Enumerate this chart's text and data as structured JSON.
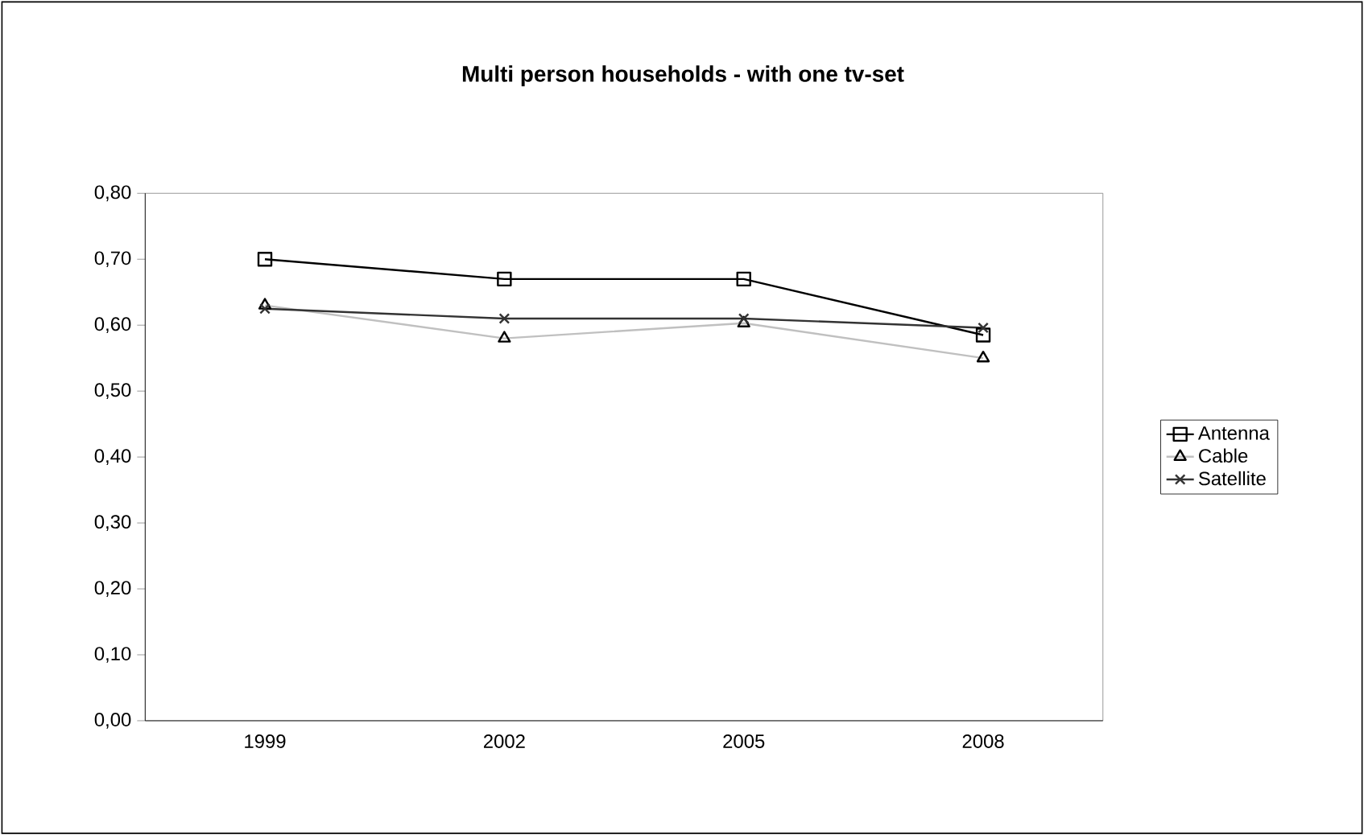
{
  "chart_data": {
    "type": "line",
    "title": "Multi person households - with one tv-set",
    "categories": [
      "1999",
      "2002",
      "2005",
      "2008"
    ],
    "series": [
      {
        "name": "Antenna",
        "color": "#000000",
        "marker": "square",
        "values": [
          0.7,
          0.67,
          0.67,
          0.585
        ]
      },
      {
        "name": "Cable",
        "color": "#c0c0c0",
        "marker": "triangle",
        "values": [
          0.63,
          0.58,
          0.603,
          0.55
        ]
      },
      {
        "name": "Satellite",
        "color": "#333333",
        "marker": "cross",
        "values": [
          0.625,
          0.61,
          0.61,
          0.596
        ]
      }
    ],
    "ylim": [
      0,
      0.8
    ],
    "yticks": [
      {
        "value": 0,
        "label": "0,00"
      },
      {
        "value": 0.1,
        "label": "0,10"
      },
      {
        "value": 0.2,
        "label": "0,20"
      },
      {
        "value": 0.3,
        "label": "0,30"
      },
      {
        "value": 0.4,
        "label": "0,40"
      },
      {
        "value": 0.5,
        "label": "0,50"
      },
      {
        "value": 0.6,
        "label": "0,60"
      },
      {
        "value": 0.7,
        "label": "0,70"
      },
      {
        "value": 0.8,
        "label": "0,80"
      }
    ],
    "grid": false,
    "legend": "right"
  }
}
